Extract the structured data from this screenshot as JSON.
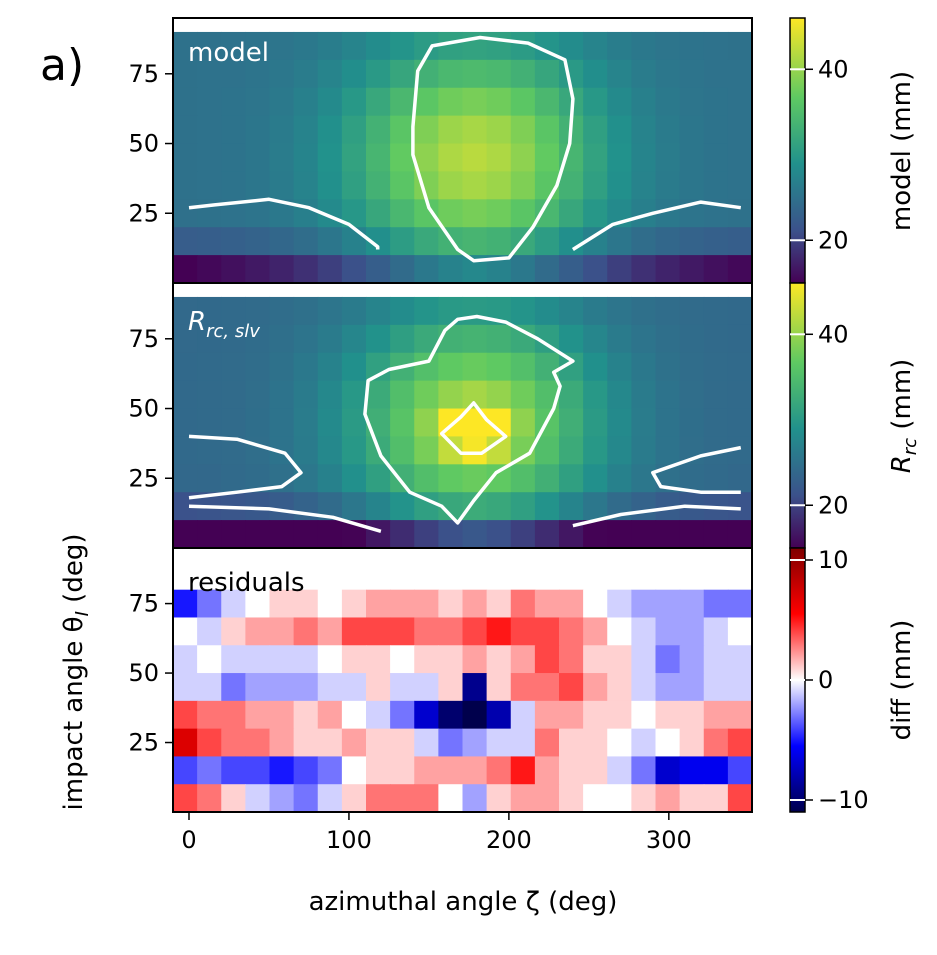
{
  "figure": {
    "panel_tag": "a)",
    "xlabel": "azimuthal angle ζ (deg)",
    "ylabel": "impact angle θ",
    "ylabel_sub": "I",
    "ylabel_unit": " (deg)"
  },
  "chart_data": [
    {
      "type": "heatmap",
      "panel": "model",
      "label": "model",
      "x": [
        0,
        15,
        30,
        45,
        60,
        75,
        90,
        105,
        120,
        135,
        150,
        165,
        180,
        195,
        210,
        225,
        240,
        255,
        270,
        285,
        300,
        315,
        330,
        345
      ],
      "y": [
        85,
        75,
        65,
        55,
        45,
        35,
        25,
        15,
        5
      ],
      "xticks": [
        0,
        100,
        200,
        300
      ],
      "yticks": [
        25,
        50,
        75
      ],
      "ylim": [
        0,
        95
      ],
      "xlim": [
        -10,
        352
      ],
      "colorbar": {
        "label": "model (mm)",
        "ticks": [
          20,
          40
        ],
        "range": [
          15,
          46
        ],
        "colormap": "viridis"
      },
      "contours": [
        {
          "level": 30,
          "points": [
            [
              140,
              56
            ],
            [
              143,
              76
            ],
            [
              152,
              85
            ],
            [
              182,
              88
            ],
            [
              212,
              86
            ],
            [
              235,
              80
            ],
            [
              240,
              66
            ],
            [
              238,
              50
            ],
            [
              230,
              35
            ],
            [
              215,
              20
            ],
            [
              200,
              9
            ],
            [
              178,
              8
            ],
            [
              168,
              12
            ],
            [
              150,
              27
            ],
            [
              140,
              46
            ]
          ]
        },
        {
          "level": 22,
          "points": [
            [
              0,
              27
            ],
            [
              16,
              28
            ],
            [
              50,
              30
            ],
            [
              75,
              27
            ],
            [
              100,
              21
            ],
            [
              118,
              13
            ],
            [
              118,
              12
            ]
          ]
        },
        {
          "level": 22,
          "points": [
            [
              240,
              12
            ],
            [
              265,
              21
            ],
            [
              290,
              25
            ],
            [
              320,
              29
            ],
            [
              345,
              27
            ]
          ]
        }
      ]
    },
    {
      "type": "heatmap",
      "panel": "Rrc_slv",
      "label": "R",
      "label_sub": "rc, slv",
      "colorbar": {
        "label": "R",
        "label_sub": "rc",
        "label_unit": " (mm)",
        "ticks": [
          20,
          40
        ],
        "range": [
          15,
          46
        ],
        "colormap": "viridis"
      },
      "contours": [
        {
          "level": 30,
          "points": [
            [
              168,
              82
            ],
            [
              160,
              78
            ],
            [
              150,
              67
            ],
            [
              125,
              64
            ],
            [
              112,
              60
            ],
            [
              110,
              48
            ],
            [
              120,
              33
            ],
            [
              138,
              20
            ],
            [
              158,
              15
            ],
            [
              168,
              9
            ],
            [
              178,
              17
            ],
            [
              192,
              27
            ],
            [
              213,
              34
            ],
            [
              228,
              50
            ],
            [
              232,
              58
            ],
            [
              228,
              63
            ],
            [
              240,
              67
            ],
            [
              218,
              75
            ],
            [
              198,
              81
            ],
            [
              180,
              83
            ]
          ]
        },
        {
          "level": 40,
          "points": [
            [
              158,
              41
            ],
            [
              170,
              47
            ],
            [
              178,
              52
            ],
            [
              186,
              46
            ],
            [
              198,
              40
            ],
            [
              183,
              34
            ],
            [
              170,
              34
            ]
          ]
        },
        {
          "level": 22,
          "points": [
            [
              0,
              40
            ],
            [
              30,
              39
            ],
            [
              60,
              34
            ],
            [
              70,
              27
            ],
            [
              58,
              22
            ],
            [
              30,
              20
            ],
            [
              0,
              18
            ]
          ]
        },
        {
          "level": 22,
          "points": [
            [
              0,
              15
            ],
            [
              50,
              14
            ],
            [
              90,
              11
            ],
            [
              120,
              6
            ]
          ]
        },
        {
          "level": 22,
          "points": [
            [
              240,
              8
            ],
            [
              270,
              12
            ],
            [
              310,
              15
            ],
            [
              345,
              14
            ]
          ]
        },
        {
          "level": 22,
          "points": [
            [
              345,
              36
            ],
            [
              320,
              33
            ],
            [
              290,
              27
            ],
            [
              295,
              22
            ],
            [
              320,
              20
            ],
            [
              345,
              20
            ]
          ]
        }
      ]
    },
    {
      "type": "heatmap",
      "panel": "residuals",
      "label": "residuals",
      "colorbar": {
        "label": "diff (mm)",
        "ticks": [
          -10,
          0,
          10
        ],
        "range": [
          -11,
          11
        ],
        "colormap": "seismic"
      },
      "values": [
        [
          0,
          0,
          0,
          0,
          0,
          0,
          0,
          0,
          0,
          0,
          0,
          0,
          0,
          0,
          0,
          0,
          0,
          0,
          0,
          0,
          0,
          0,
          0,
          0
        ],
        [
          -5,
          -3,
          -1,
          0,
          1,
          1,
          0,
          1,
          2,
          2,
          2,
          1,
          2,
          1,
          3,
          2,
          2,
          0,
          -1,
          -2,
          -2,
          -2,
          -3,
          -3
        ],
        [
          0,
          -1,
          1,
          2,
          2,
          3,
          2,
          4,
          4,
          4,
          3,
          3,
          4,
          5,
          4,
          4,
          3,
          2,
          0,
          -1,
          -2,
          -2,
          -1,
          0
        ],
        [
          -1,
          0,
          -1,
          -1,
          -1,
          -1,
          0,
          1,
          1,
          0,
          1,
          1,
          2,
          1,
          2,
          4,
          3,
          1,
          1,
          -1,
          -3,
          -2,
          -1,
          -1
        ],
        [
          -1,
          -1,
          -3,
          -2,
          -2,
          -2,
          -1,
          -1,
          1,
          -1,
          -1,
          1,
          -9,
          1,
          3,
          3,
          4,
          2,
          1,
          -1,
          -2,
          -2,
          -1,
          -1
        ],
        [
          4,
          3,
          3,
          2,
          2,
          1,
          2,
          0,
          -1,
          -3,
          -7,
          -10,
          -11,
          -8,
          -1,
          2,
          2,
          1,
          1,
          0,
          1,
          1,
          2,
          2
        ],
        [
          7,
          4,
          3,
          3,
          2,
          1,
          1,
          2,
          1,
          1,
          -1,
          -3,
          -2,
          -1,
          -1,
          3,
          1,
          1,
          0,
          -1,
          0,
          1,
          3,
          4
        ],
        [
          -4,
          -3,
          -4,
          -4,
          -5,
          -4,
          -3,
          0,
          1,
          1,
          2,
          2,
          2,
          3,
          5,
          2,
          1,
          1,
          -1,
          -3,
          -7,
          -6,
          -6,
          -4
        ],
        [
          4,
          3,
          1,
          -1,
          -2,
          -3,
          -1,
          1,
          3,
          3,
          3,
          0,
          -2,
          1,
          2,
          2,
          1,
          0,
          0,
          1,
          2,
          1,
          1,
          4
        ]
      ],
      "clim": [
        -11,
        11
      ]
    }
  ]
}
